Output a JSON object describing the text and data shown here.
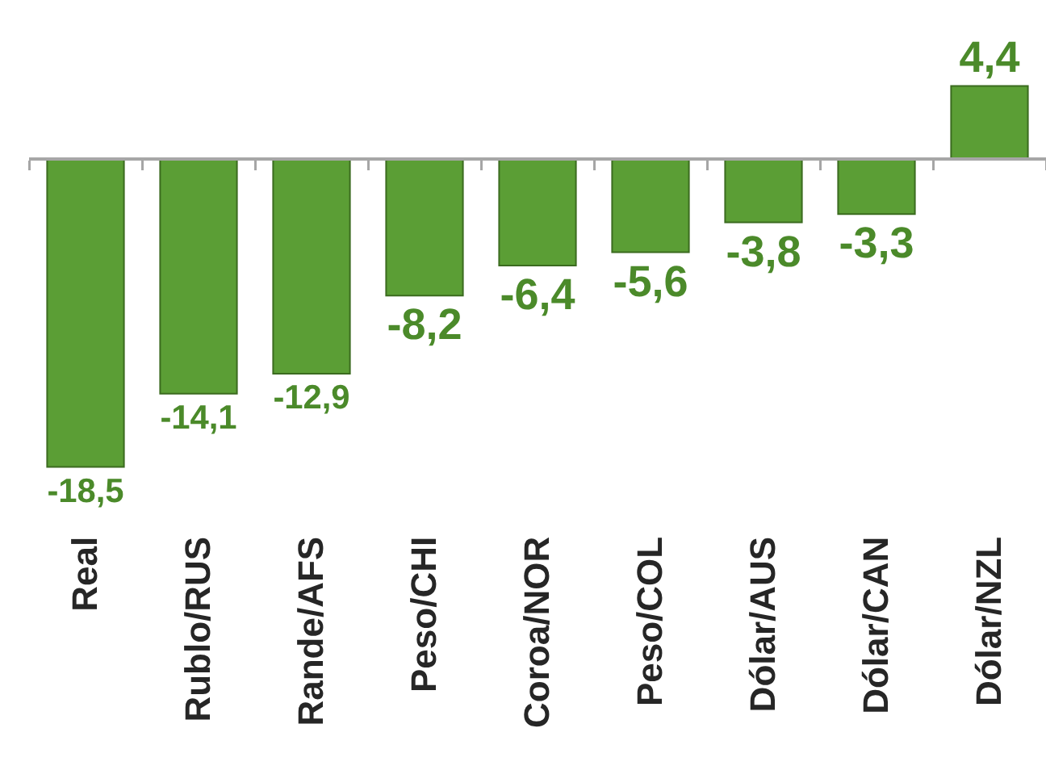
{
  "chart_data": {
    "type": "bar",
    "categories": [
      "Real",
      "Rublo/RUS",
      "Rande/AFS",
      "Peso/CHI",
      "Coroa/NOR",
      "Peso/COL",
      "Dólar/AUS",
      "Dólar/CAN",
      "Dólar/NZL"
    ],
    "values": [
      -18.5,
      -14.1,
      -12.9,
      -8.2,
      -6.4,
      -5.6,
      -3.8,
      -3.3,
      4.4
    ],
    "value_labels": [
      "-18,5",
      "-14,1",
      "-12,9",
      "-8,2",
      "-6,4",
      "-5,6",
      "-3,8",
      "-3,3",
      "4,4"
    ],
    "color": "#5b9e35",
    "tick_labels": "x"
  }
}
